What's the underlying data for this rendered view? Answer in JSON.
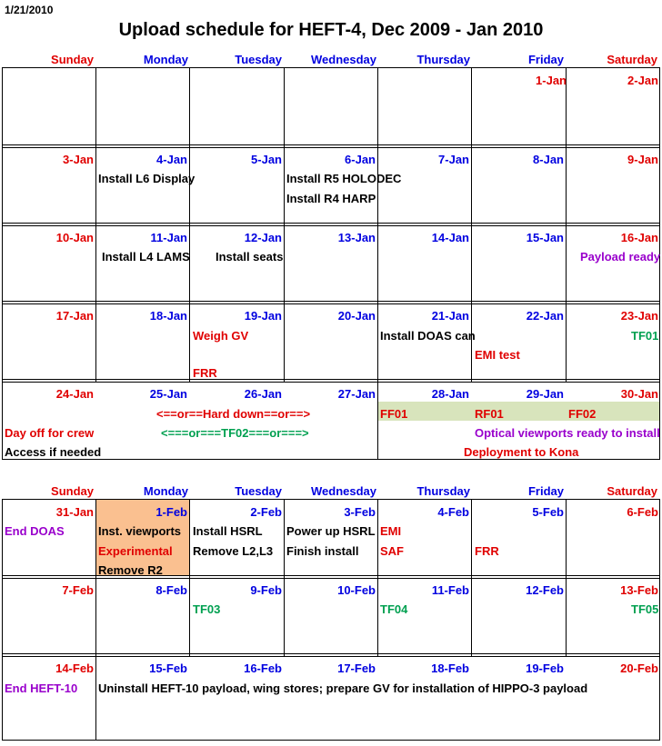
{
  "header_date": "1/21/2010",
  "title": "Upload schedule for HEFT-4, Dec 2009 - Jan 2010",
  "weekdays": [
    "Sunday",
    "Monday",
    "Tuesday",
    "Wednesday",
    "Thursday",
    "Friday",
    "Saturday"
  ],
  "colors": {
    "weekend": "#e00000",
    "weekday": "#0000e0",
    "highlight_green": "#d8e4bc",
    "highlight_orange": "#fac090"
  },
  "dec_jan": {
    "weeks": [
      {
        "days": [
          "",
          "",
          "",
          "",
          "",
          "1-Jan",
          "2-Jan"
        ]
      },
      {
        "days": [
          "3-Jan",
          "4-Jan",
          "5-Jan",
          "6-Jan",
          "7-Jan",
          "8-Jan",
          "9-Jan"
        ]
      },
      {
        "days": [
          "10-Jan",
          "11-Jan",
          "12-Jan",
          "13-Jan",
          "14-Jan",
          "15-Jan",
          "16-Jan"
        ]
      },
      {
        "days": [
          "17-Jan",
          "18-Jan",
          "19-Jan",
          "20-Jan",
          "21-Jan",
          "22-Jan",
          "23-Jan"
        ]
      },
      {
        "days": [
          "24-Jan",
          "25-Jan",
          "26-Jan",
          "27-Jan",
          "28-Jan",
          "29-Jan",
          "30-Jan"
        ]
      }
    ],
    "events": {
      "install_l6": "Install L6 Display",
      "install_r5": "Install R5 HOLODEC",
      "install_r4": "Install R4 HARP",
      "install_l4": "Install L4 LAMS",
      "install_seats": "Install seats",
      "payload_ready": "Payload ready",
      "weigh_gv": "Weigh GV",
      "frr": "FRR",
      "install_doas": "Install DOAS can",
      "emi_test": "EMI test",
      "tf01": "TF01",
      "day_off": "Day off for crew",
      "access": "Access if needed",
      "hard_down": "<==or==Hard down==or==>",
      "tf02_arrow": "<===or===TF02===or===>",
      "ff01": "FF01",
      "rf01": "RF01",
      "ff02": "FF02",
      "optical": "Optical viewports ready to install",
      "deployment": "Deployment to Kona"
    }
  },
  "feb": {
    "weeks": [
      {
        "days": [
          "31-Jan",
          "1-Feb",
          "2-Feb",
          "3-Feb",
          "4-Feb",
          "5-Feb",
          "6-Feb"
        ]
      },
      {
        "days": [
          "7-Feb",
          "8-Feb",
          "9-Feb",
          "10-Feb",
          "11-Feb",
          "12-Feb",
          "13-Feb"
        ]
      },
      {
        "days": [
          "14-Feb",
          "15-Feb",
          "16-Feb",
          "17-Feb",
          "18-Feb",
          "19-Feb",
          "20-Feb"
        ]
      }
    ],
    "events": {
      "end_doas": "End DOAS",
      "inst_viewports": "Inst. viewports",
      "experimental": "Experimental",
      "remove_r2": "Remove R2",
      "install_hsrl": "Install HSRL",
      "remove_l2l3": "Remove L2,L3",
      "power_up": "Power up HSRL",
      "finish_install": "Finish install",
      "emi": "EMI",
      "saf": "SAF",
      "frr": "FRR",
      "tf03": "TF03",
      "tf04": "TF04",
      "tf05": "TF05",
      "end_heft10": "End HEFT-10",
      "uninstall": "Uninstall HEFT-10 payload, wing stores; prepare GV for installation of HIPPO-3 payload"
    }
  }
}
